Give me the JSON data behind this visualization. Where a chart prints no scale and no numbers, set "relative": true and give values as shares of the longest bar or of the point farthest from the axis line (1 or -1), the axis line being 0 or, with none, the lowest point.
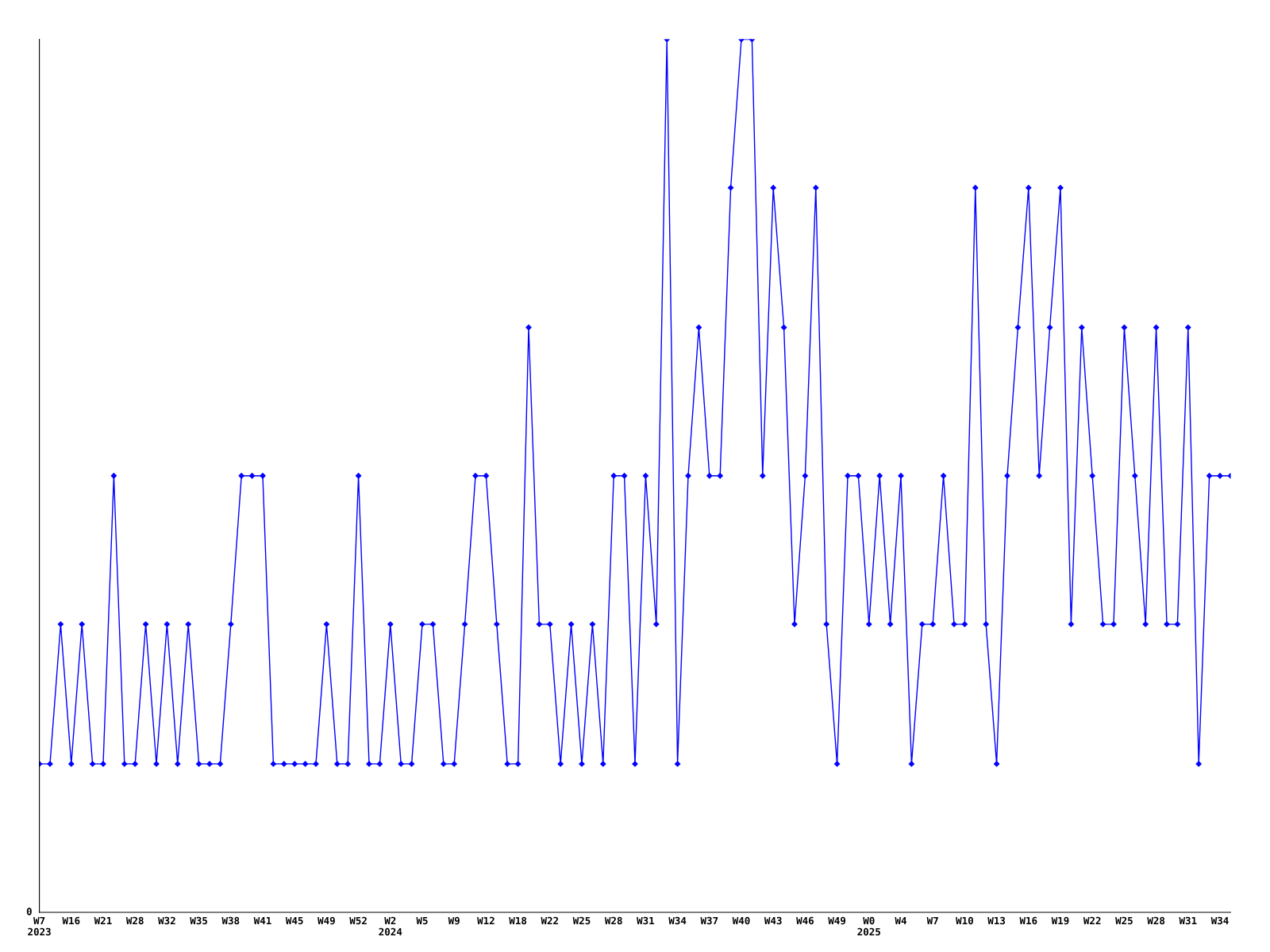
{
  "chart_data": {
    "type": "line",
    "relative": true,
    "marker": "diamond",
    "line_style": "solid",
    "grid": false,
    "legend": false,
    "annotations": [
      "0"
    ],
    "categories": [
      "W7\n2023",
      null,
      null,
      "W16",
      null,
      null,
      "W21",
      null,
      null,
      "W28",
      null,
      null,
      "W32",
      null,
      null,
      "W35",
      null,
      null,
      "W38",
      null,
      null,
      "W41",
      null,
      null,
      "W45",
      null,
      null,
      "W49",
      null,
      null,
      "W52",
      null,
      null,
      "W2\n2024",
      null,
      null,
      "W5",
      null,
      null,
      "W9",
      null,
      null,
      "W12",
      null,
      null,
      "W18",
      null,
      null,
      "W22",
      null,
      null,
      "W25",
      null,
      null,
      "W28",
      null,
      null,
      "W31",
      null,
      null,
      "W34",
      null,
      null,
      "W37",
      null,
      null,
      "W40",
      null,
      null,
      "W43",
      null,
      null,
      "W46",
      null,
      null,
      "W49",
      null,
      null,
      "W0\n2025",
      null,
      null,
      "W4",
      null,
      null,
      "W7",
      null,
      null,
      "W10",
      null,
      null,
      "W13",
      null,
      null,
      "W16",
      null,
      null,
      "W19",
      null,
      null,
      "W22",
      null,
      null,
      "W25",
      null,
      null,
      "W28",
      null,
      null,
      "W31",
      null,
      null,
      "W34",
      null
    ],
    "series": [
      {
        "color": "#0000ff",
        "values": [
          0.17,
          0.17,
          0.33,
          0.17,
          0.33,
          0.17,
          0.17,
          0.5,
          0.17,
          0.17,
          0.33,
          0.17,
          0.33,
          0.17,
          0.33,
          0.17,
          0.17,
          0.17,
          0.33,
          0.5,
          0.5,
          0.5,
          0.17,
          0.17,
          0.17,
          0.17,
          0.17,
          0.33,
          0.17,
          0.17,
          0.5,
          0.17,
          0.17,
          0.33,
          0.17,
          0.17,
          0.33,
          0.33,
          0.17,
          0.17,
          0.33,
          0.5,
          0.5,
          0.33,
          0.17,
          0.17,
          0.67,
          0.33,
          0.33,
          0.17,
          0.33,
          0.17,
          0.33,
          0.17,
          0.5,
          0.5,
          0.17,
          0.5,
          0.33,
          1,
          0.17,
          0.5,
          0.67,
          0.5,
          0.5,
          0.83,
          1,
          1,
          0.5,
          0.83,
          0.67,
          0.33,
          0.5,
          0.83,
          0.33,
          0.17,
          0.5,
          0.5,
          0.33,
          0.5,
          0.33,
          0.5,
          0.17,
          0.33,
          0.33,
          0.5,
          0.33,
          0.33,
          0.83,
          0.33,
          0.17,
          0.5,
          0.67,
          0.83,
          0.5,
          0.67,
          0.83,
          0.33,
          0.67,
          0.5,
          0.33,
          0.33,
          0.67,
          0.5,
          0.33,
          0.67,
          0.33,
          0.33,
          0.67,
          0.17,
          0.5,
          0.5,
          0.5
        ]
      }
    ]
  }
}
